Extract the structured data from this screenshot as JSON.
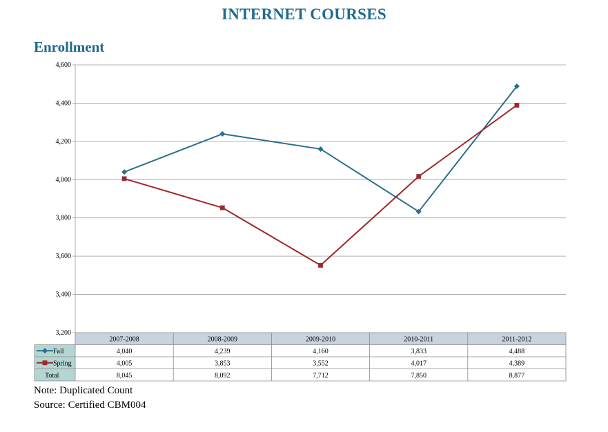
{
  "title": "INTERNET COURSES",
  "subtitle": "Enrollment",
  "colors": {
    "title": "#1f6b8e",
    "fall": "#2b6e8c",
    "spring": "#9c2a2a",
    "grid": "#9a9a9a",
    "header_fill": "#c8d3df",
    "label_fill": "#b3d6d2"
  },
  "chart_data": {
    "type": "line",
    "categories": [
      "2007-2008",
      "2008-2009",
      "2009-2010",
      "2010-2011",
      "2011-2012"
    ],
    "series": [
      {
        "name": "Fall",
        "values": [
          4040,
          4239,
          4160,
          3833,
          4488
        ],
        "labels": [
          "4,040",
          "4,239",
          "4,160",
          "3,833",
          "4,488"
        ],
        "color": "#2b6e8c",
        "marker": "diamond"
      },
      {
        "name": "Spring",
        "values": [
          4005,
          3853,
          3552,
          4017,
          4389
        ],
        "labels": [
          "4,005",
          "3,853",
          "3,552",
          "4,017",
          "4,389"
        ],
        "color": "#9c2a2a",
        "marker": "square"
      }
    ],
    "ylim": [
      3200,
      4600
    ],
    "yticks": [
      "3,200",
      "3,400",
      "3,600",
      "3,800",
      "4,000",
      "4,200",
      "4,400",
      "4,600"
    ],
    "grid": true,
    "legend": "data-table",
    "table": {
      "total_label": "Total",
      "total_values": [
        "8,045",
        "8,092",
        "7,712",
        "7,850",
        "8,877"
      ]
    }
  },
  "notes": [
    "Note: Duplicated Count",
    "Source: Certified CBM004"
  ]
}
